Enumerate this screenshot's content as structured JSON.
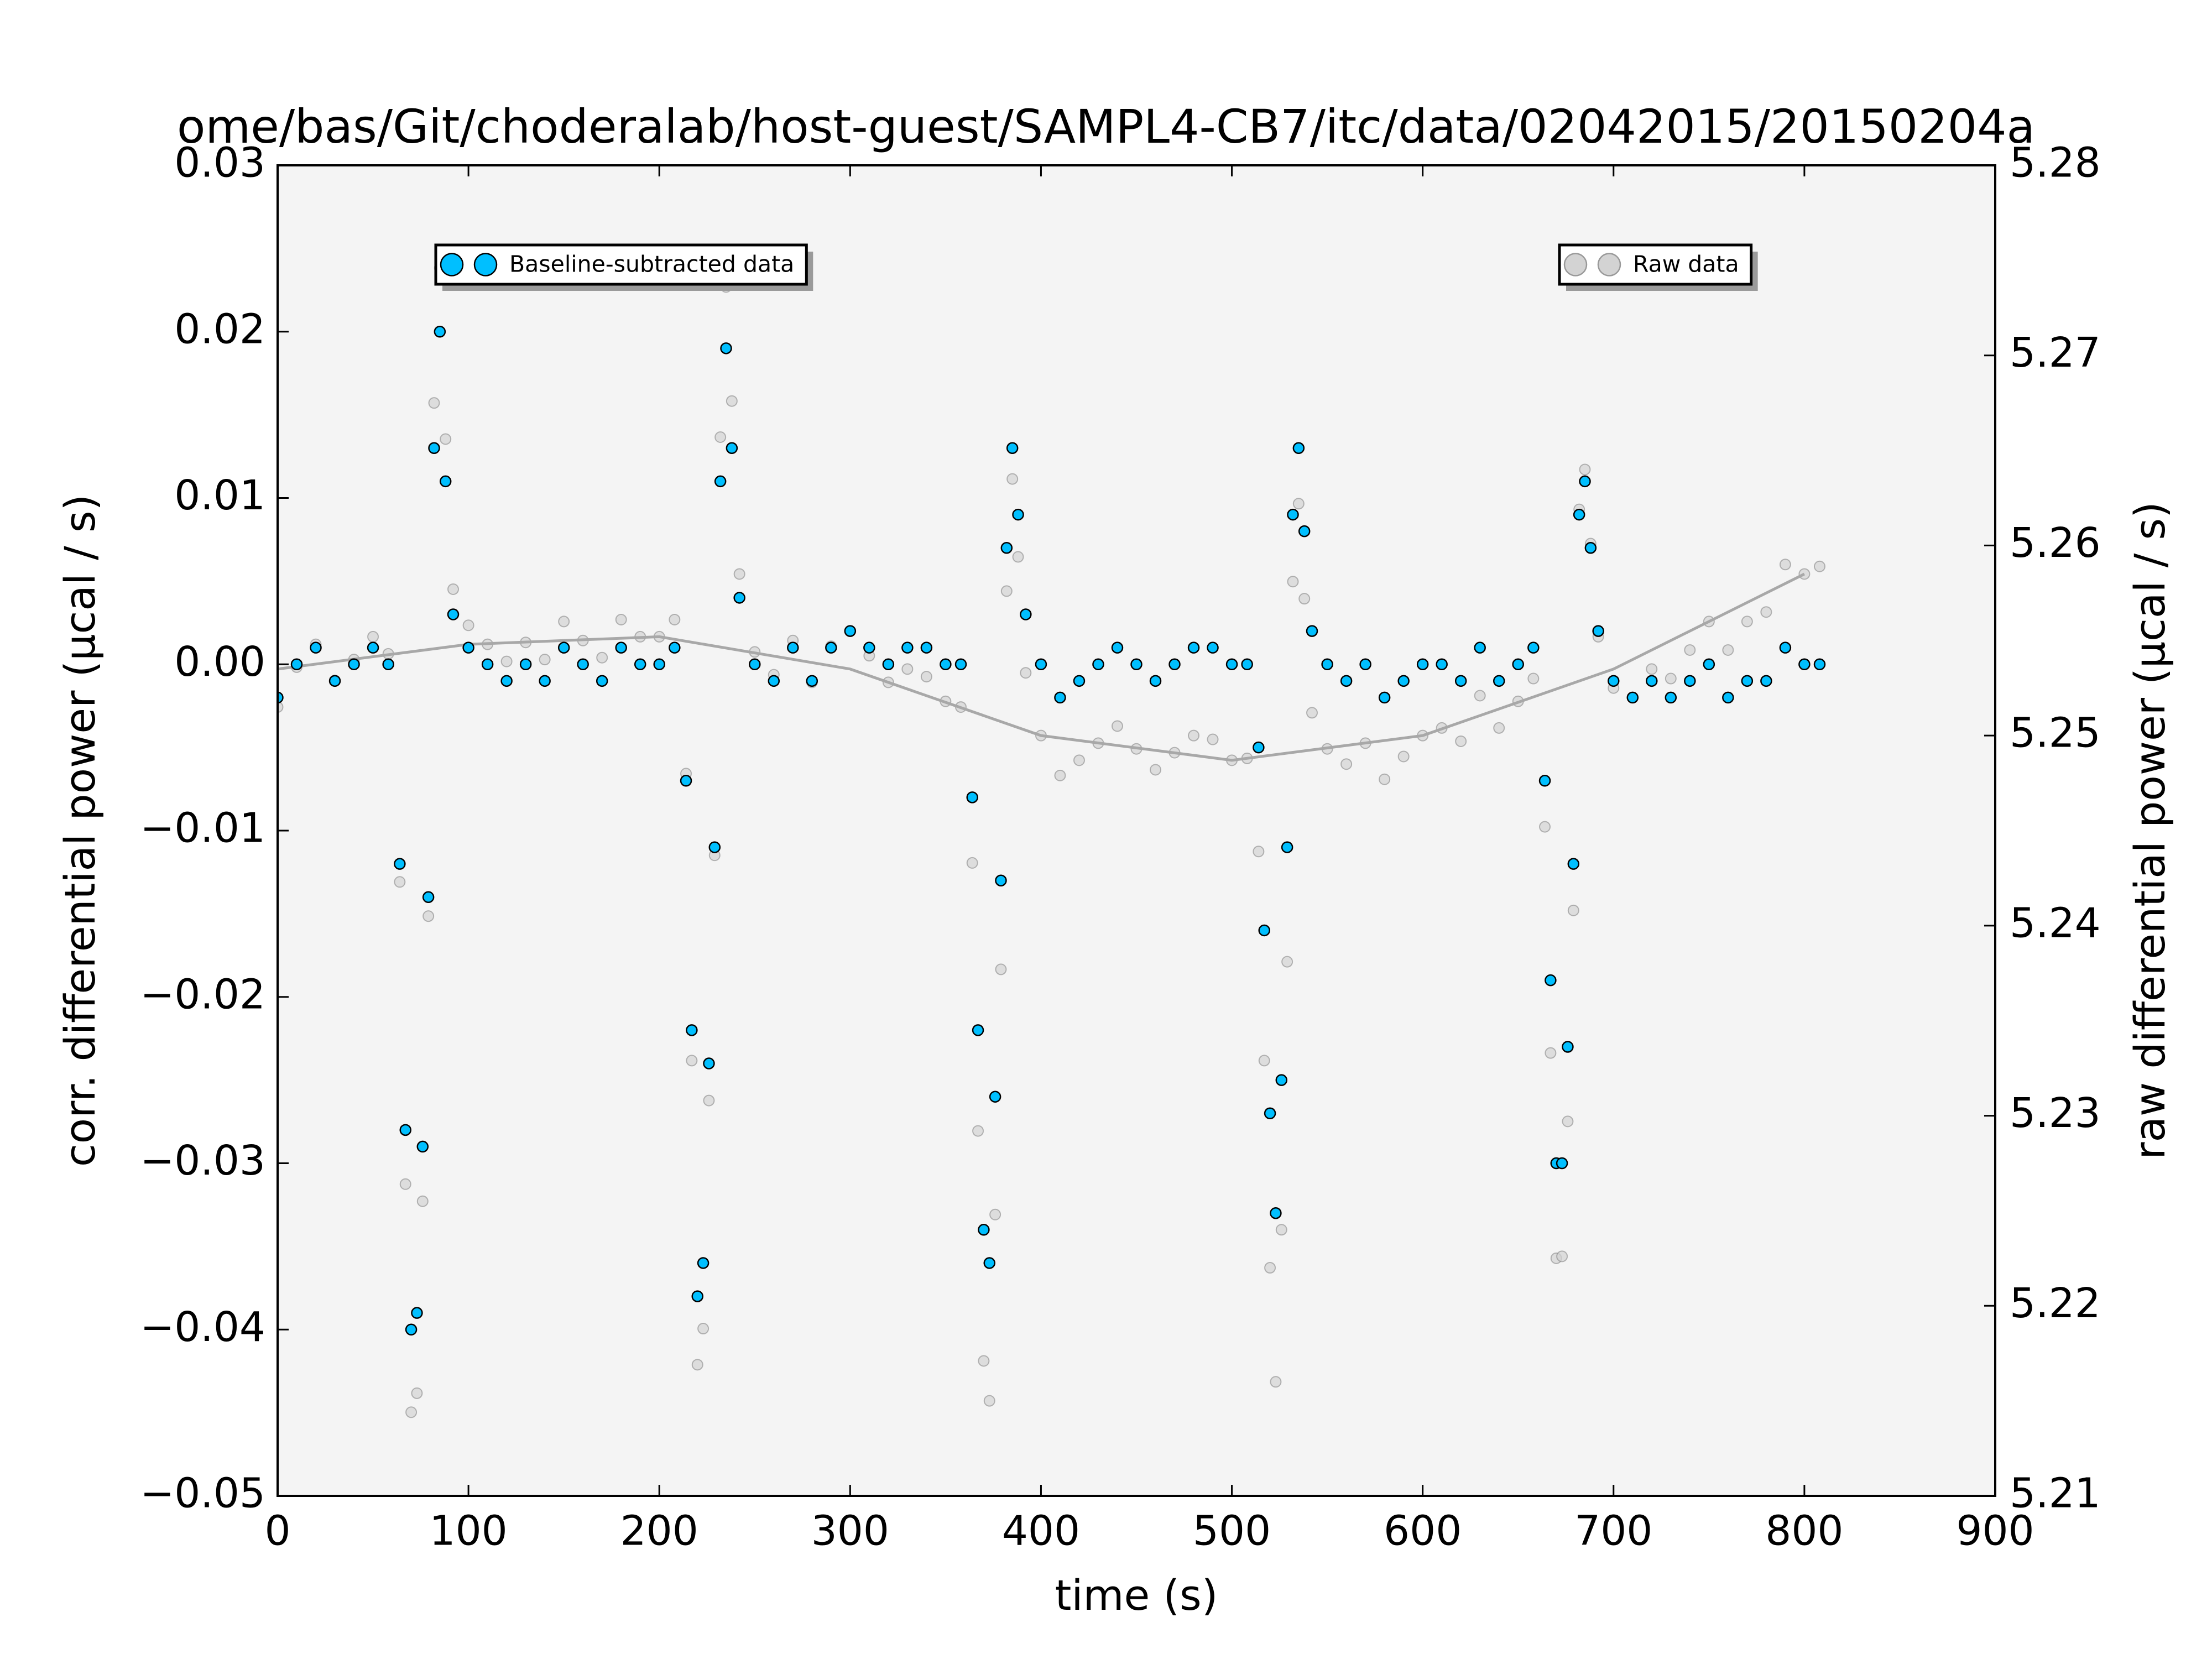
{
  "chart_data": {
    "type": "scatter",
    "title": "ome/bas/Git/choderalab/host-guest/SAMPL4-CB7/itc/data/02042015/20150204a",
    "x_label": "time (s)",
    "y_label": "corr. differential power (μcal / s)",
    "y2_label": "raw differential power (μcal / s)",
    "xlim": [
      0,
      900
    ],
    "xticks": [
      0,
      100,
      200,
      300,
      400,
      500,
      600,
      700,
      800,
      900
    ],
    "ylim": [
      -0.05,
      0.03
    ],
    "yticks": [
      {
        "value": -0.05,
        "label": "−0.05"
      },
      {
        "value": -0.04,
        "label": "−0.04"
      },
      {
        "value": -0.03,
        "label": "−0.03"
      },
      {
        "value": -0.02,
        "label": "−0.02"
      },
      {
        "value": -0.01,
        "label": "−0.01"
      },
      {
        "value": 0,
        "label": "0.00"
      },
      0.01,
      0.02,
      0.03
    ],
    "y2lim": [
      5.21,
      5.28
    ],
    "y2ticks": [
      5.21,
      5.22,
      5.23,
      5.24,
      5.25,
      5.26,
      5.27,
      5.28
    ],
    "grid": false,
    "x": [
      0,
      10,
      20,
      30,
      40,
      50,
      58,
      64,
      67,
      70,
      73,
      76,
      79,
      82,
      85,
      88,
      92,
      100,
      110,
      120,
      130,
      140,
      150,
      160,
      170,
      180,
      190,
      200,
      208,
      214,
      217,
      220,
      223,
      226,
      229,
      232,
      235,
      238,
      242,
      250,
      260,
      270,
      280,
      290,
      300,
      310,
      320,
      330,
      340,
      350,
      358,
      364,
      367,
      370,
      373,
      376,
      379,
      382,
      385,
      388,
      392,
      400,
      410,
      420,
      430,
      440,
      450,
      460,
      470,
      480,
      490,
      500,
      508,
      514,
      517,
      520,
      523,
      526,
      529,
      532,
      535,
      538,
      542,
      550,
      560,
      570,
      580,
      590,
      600,
      610,
      620,
      630,
      640,
      650,
      658,
      664,
      667,
      670,
      673,
      676,
      679,
      682,
      685,
      688,
      692,
      700,
      710,
      720,
      730,
      740,
      750,
      760,
      770,
      780,
      790,
      800,
      808
    ],
    "series": [
      {
        "name": "Raw data",
        "color": "#d3d3d3",
        "axis": "y2",
        "values": [
          5.2515,
          5.2536,
          5.2548,
          5.2529,
          5.254,
          5.2552,
          5.2543,
          5.2423,
          5.2264,
          5.2144,
          5.2154,
          5.2255,
          5.2405,
          5.2675,
          5.2746,
          5.2656,
          5.2577,
          5.2558,
          5.2548,
          5.2539,
          5.2549,
          5.254,
          5.256,
          5.255,
          5.2541,
          5.2561,
          5.2552,
          5.2552,
          5.2561,
          5.248,
          5.2329,
          5.2169,
          5.2188,
          5.2308,
          5.2437,
          5.2657,
          5.2736,
          5.2676,
          5.2585,
          5.2544,
          5.2532,
          5.255,
          5.2528,
          5.2547,
          5.2555,
          5.2542,
          5.2528,
          5.2535,
          5.2531,
          5.2518,
          5.2515,
          5.2433,
          5.2292,
          5.2171,
          5.215,
          5.2248,
          5.2377,
          5.2576,
          5.2635,
          5.2594,
          5.2533,
          5.25,
          5.2479,
          5.2487,
          5.2496,
          5.2505,
          5.2493,
          5.2482,
          5.2491,
          5.25,
          5.2498,
          5.2487,
          5.2488,
          5.2439,
          5.2329,
          5.222,
          5.216,
          5.224,
          5.2381,
          5.2581,
          5.2622,
          5.2572,
          5.2512,
          5.2493,
          5.2485,
          5.2496,
          5.2477,
          5.2489,
          5.25,
          5.2504,
          5.2497,
          5.2521,
          5.2504,
          5.2518,
          5.253,
          5.2452,
          5.2333,
          5.2225,
          5.2226,
          5.2297,
          5.2408,
          5.2619,
          5.264,
          5.2601,
          5.2552,
          5.2525,
          5.252,
          5.2535,
          5.253,
          5.2545,
          5.256,
          5.2545,
          5.256,
          5.2565,
          5.259,
          5.2585,
          5.2589
        ]
      },
      {
        "type": "line",
        "color": "#a8a8a8",
        "axis": "y2",
        "x": [
          0,
          100,
          200,
          300,
          400,
          500,
          600,
          700,
          800
        ],
        "values": [
          5.2535,
          5.2548,
          5.2552,
          5.2535,
          5.25,
          5.2487,
          5.25,
          5.2535,
          5.2585
        ]
      },
      {
        "name": "Baseline-subtracted data",
        "color": "#00bfff",
        "values": [
          -0.002,
          0.0,
          0.001,
          -0.001,
          0.0,
          0.001,
          0.0,
          -0.012,
          -0.028,
          -0.04,
          -0.039,
          -0.029,
          -0.014,
          0.013,
          0.02,
          0.011,
          0.003,
          0.001,
          0.0,
          -0.001,
          0.0,
          -0.001,
          0.001,
          0.0,
          -0.001,
          0.001,
          0.0,
          0.0,
          0.001,
          -0.007,
          -0.022,
          -0.038,
          -0.036,
          -0.024,
          -0.011,
          0.011,
          0.019,
          0.013,
          0.004,
          0.0,
          -0.001,
          0.001,
          -0.001,
          0.001,
          0.002,
          0.001,
          0.0,
          0.001,
          0.001,
          0.0,
          0.0,
          -0.008,
          -0.022,
          -0.034,
          -0.036,
          -0.026,
          -0.013,
          0.007,
          0.013,
          0.009,
          0.003,
          0.0,
          -0.002,
          -0.001,
          0.0,
          0.001,
          0.0,
          -0.001,
          0.0,
          0.001,
          0.001,
          0.0,
          0.0,
          -0.005,
          -0.016,
          -0.027,
          -0.033,
          -0.025,
          -0.011,
          0.009,
          0.013,
          0.008,
          0.002,
          0.0,
          -0.001,
          0.0,
          -0.002,
          -0.001,
          0.0,
          0.0,
          -0.001,
          0.001,
          -0.001,
          0.0,
          0.001,
          -0.007,
          -0.019,
          -0.03,
          -0.03,
          -0.023,
          -0.012,
          0.009,
          0.011,
          0.007,
          0.002,
          -0.001,
          -0.002,
          -0.001,
          -0.002,
          -0.001,
          0.0,
          -0.002,
          -0.001,
          -0.001,
          0.001,
          0.0,
          0.0
        ]
      }
    ]
  }
}
